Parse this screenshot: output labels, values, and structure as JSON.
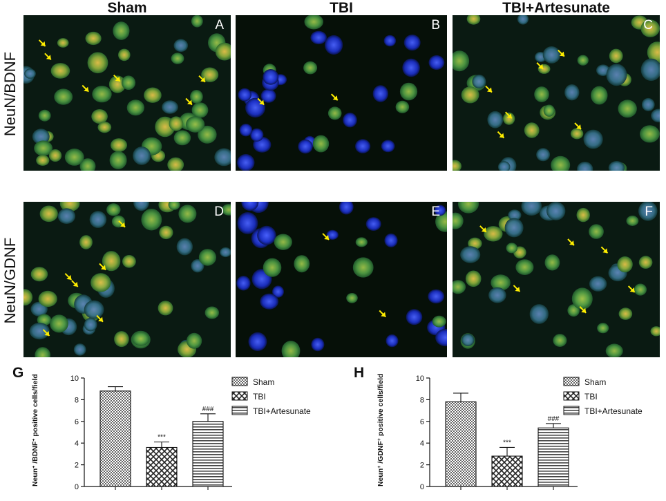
{
  "columns": [
    "Sham",
    "TBI",
    "TBI+Artesunate"
  ],
  "rows": [
    "NeuN/BDNF",
    "NeuN/GDNF"
  ],
  "panels": [
    "A",
    "B",
    "C",
    "D",
    "E",
    "F"
  ],
  "colors": {
    "blue_nuclei": "#1f3fd6",
    "green_neuron": "#3f9a3a",
    "yellow_arrow": "#ffee00",
    "background": "#050a10"
  },
  "chart_data": [
    {
      "type": "bar",
      "panel_label": "G",
      "ylabel_parts": [
        "Neun",
        "+",
        " /BDNF",
        "+",
        " positive cells/field"
      ],
      "categories": [
        "Sham",
        "TBI",
        "TBI+Artesunate"
      ],
      "values": [
        8.8,
        3.6,
        6.0
      ],
      "errors": [
        0.4,
        0.5,
        0.7
      ],
      "annotations": [
        "",
        "***",
        "###"
      ],
      "ylim": [
        0,
        10
      ],
      "yticks": [
        "0",
        "2",
        "4",
        "6",
        "8",
        "10"
      ],
      "legend": [
        "Sham",
        "TBI",
        "TBI+Artesunate"
      ],
      "legend_position": "right"
    },
    {
      "type": "bar",
      "panel_label": "H",
      "ylabel_parts": [
        "Neun",
        "+",
        " /GDNF",
        "+",
        " positive cells/field"
      ],
      "categories": [
        "Sham",
        "TBI",
        "TBI+Artesunate"
      ],
      "values": [
        7.8,
        2.8,
        5.4
      ],
      "errors": [
        0.8,
        0.8,
        0.4
      ],
      "annotations": [
        "",
        "***",
        "###"
      ],
      "ylim": [
        0,
        10
      ],
      "yticks": [
        "0",
        "2",
        "4",
        "6",
        "8",
        "10"
      ],
      "legend": [
        "Sham",
        "TBI",
        "TBI+Artesunate"
      ],
      "legend_position": "right"
    }
  ]
}
